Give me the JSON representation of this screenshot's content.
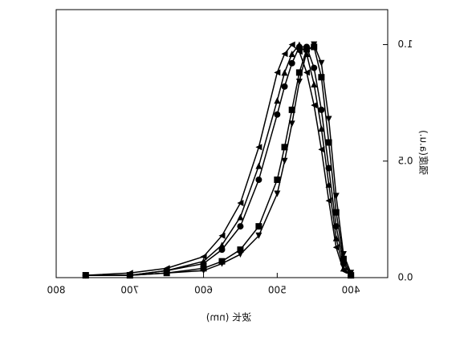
{
  "chart_data": {
    "type": "line",
    "x_label": "波长 (nm)",
    "y_label": "强度(a.u.)",
    "x": [
      760,
      700,
      650,
      600,
      575,
      550,
      525,
      500,
      490,
      480,
      470,
      460,
      450,
      440,
      430,
      420,
      410,
      400
    ],
    "series": [
      {
        "color": "#000000",
        "marker": "left-triangle",
        "values": [
          0.01,
          0.02,
          0.04,
          0.09,
          0.18,
          0.32,
          0.56,
          0.88,
          0.96,
          1.0,
          0.97,
          0.88,
          0.74,
          0.55,
          0.33,
          0.13,
          0.03,
          0.01
        ]
      },
      {
        "color": "#000000",
        "marker": "up-triangle",
        "values": [
          0.01,
          0.01,
          0.03,
          0.07,
          0.14,
          0.26,
          0.48,
          0.76,
          0.88,
          0.96,
          1.0,
          0.96,
          0.83,
          0.64,
          0.4,
          0.17,
          0.04,
          0.01
        ]
      },
      {
        "color": "#000000",
        "marker": "circle",
        "values": [
          0.01,
          0.01,
          0.03,
          0.06,
          0.12,
          0.22,
          0.42,
          0.7,
          0.82,
          0.92,
          0.99,
          0.99,
          0.9,
          0.72,
          0.47,
          0.22,
          0.06,
          0.01
        ]
      },
      {
        "color": "#000000",
        "marker": "square",
        "values": [
          0.01,
          0.01,
          0.02,
          0.04,
          0.07,
          0.12,
          0.22,
          0.42,
          0.56,
          0.72,
          0.88,
          0.98,
          0.99,
          0.86,
          0.58,
          0.28,
          0.08,
          0.01
        ]
      },
      {
        "color": "#000000",
        "marker": "down-triangle",
        "values": [
          0.01,
          0.01,
          0.02,
          0.03,
          0.06,
          0.1,
          0.18,
          0.36,
          0.5,
          0.66,
          0.84,
          0.97,
          1.0,
          0.92,
          0.68,
          0.35,
          0.1,
          0.02
        ]
      }
    ],
    "xlim": [
      800,
      350
    ],
    "xticks": [
      800,
      700,
      600,
      500,
      400
    ],
    "ylim": [
      0,
      1.15
    ],
    "yticks": [
      {
        "value": 0,
        "label": "0.0"
      },
      0.5,
      {
        "value": 1,
        "label": "1.0"
      }
    ],
    "mirrored": true
  }
}
